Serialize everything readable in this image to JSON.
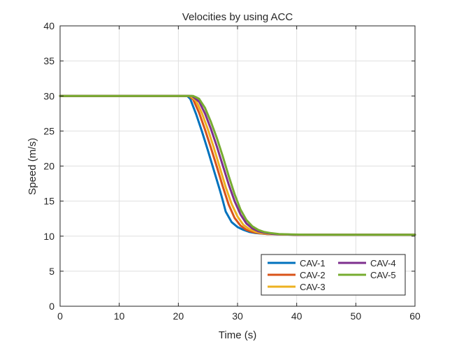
{
  "chart_data": {
    "type": "line",
    "title": "Velocities by using ACC",
    "xlabel": "Time (s)",
    "ylabel": "Speed (m/s)",
    "xlim": [
      0,
      60
    ],
    "ylim": [
      0,
      40
    ],
    "xticks": [
      0,
      10,
      20,
      30,
      40,
      50,
      60
    ],
    "yticks": [
      0,
      5,
      10,
      15,
      20,
      25,
      30,
      35,
      40
    ],
    "grid": true,
    "legend_position": "bottom-right",
    "series": [
      {
        "name": "CAV-1",
        "color": "#0072BD",
        "x": [
          0,
          21.5,
          22,
          23,
          24,
          25,
          26,
          27,
          27.5,
          28,
          29,
          30,
          31,
          32,
          33,
          35,
          37,
          40,
          45,
          50,
          60
        ],
        "y": [
          30,
          30,
          29.6,
          27.4,
          24.9,
          22.2,
          19.4,
          16.6,
          15.1,
          13.5,
          12.0,
          11.3,
          10.9,
          10.6,
          10.45,
          10.3,
          10.25,
          10.2,
          10.2,
          10.2,
          10.2
        ]
      },
      {
        "name": "CAV-2",
        "color": "#D95319",
        "x": [
          0,
          21.8,
          22.5,
          23.5,
          24.5,
          25.5,
          26.5,
          27.5,
          28.5,
          29.5,
          30.5,
          31.5,
          32.5,
          33.5,
          35,
          37,
          40,
          45,
          50,
          60
        ],
        "y": [
          30,
          30,
          29.5,
          27.6,
          25.2,
          22.6,
          19.9,
          17.1,
          14.5,
          12.6,
          11.5,
          10.9,
          10.6,
          10.45,
          10.3,
          10.25,
          10.2,
          10.2,
          10.2,
          10.2
        ]
      },
      {
        "name": "CAV-3",
        "color": "#EDB120",
        "x": [
          0,
          22,
          23,
          24,
          25,
          26,
          27,
          28,
          29,
          30,
          31,
          32,
          33,
          34,
          35.5,
          37.5,
          40,
          45,
          50,
          60
        ],
        "y": [
          30,
          30,
          29.3,
          27.5,
          25.2,
          22.6,
          19.8,
          17.0,
          14.6,
          12.8,
          11.6,
          11.0,
          10.65,
          10.45,
          10.3,
          10.25,
          10.2,
          10.2,
          10.2,
          10.2
        ]
      },
      {
        "name": "CAV-4",
        "color": "#7E2F8E",
        "x": [
          0,
          22.3,
          23.5,
          24.5,
          25.5,
          26.5,
          27.5,
          28.5,
          29.5,
          30.5,
          31.5,
          32.5,
          33.5,
          34.5,
          36,
          38,
          40,
          45,
          50,
          60
        ],
        "y": [
          30,
          30,
          29.2,
          27.5,
          25.3,
          22.8,
          20.1,
          17.4,
          15.0,
          13.1,
          11.8,
          11.1,
          10.7,
          10.5,
          10.3,
          10.25,
          10.2,
          10.2,
          10.2,
          10.2
        ]
      },
      {
        "name": "CAV-5",
        "color": "#77AC30",
        "x": [
          0,
          22.5,
          23.5,
          24.5,
          25.5,
          26.5,
          27.5,
          28.5,
          29.5,
          30.5,
          31.5,
          32.5,
          33.5,
          34.5,
          35.5,
          37,
          39,
          42,
          50,
          60
        ],
        "y": [
          30,
          30,
          29.6,
          28.3,
          26.3,
          24.0,
          21.4,
          18.6,
          16.0,
          13.8,
          12.3,
          11.4,
          10.9,
          10.6,
          10.45,
          10.3,
          10.25,
          10.2,
          10.2,
          10.2
        ]
      }
    ]
  }
}
